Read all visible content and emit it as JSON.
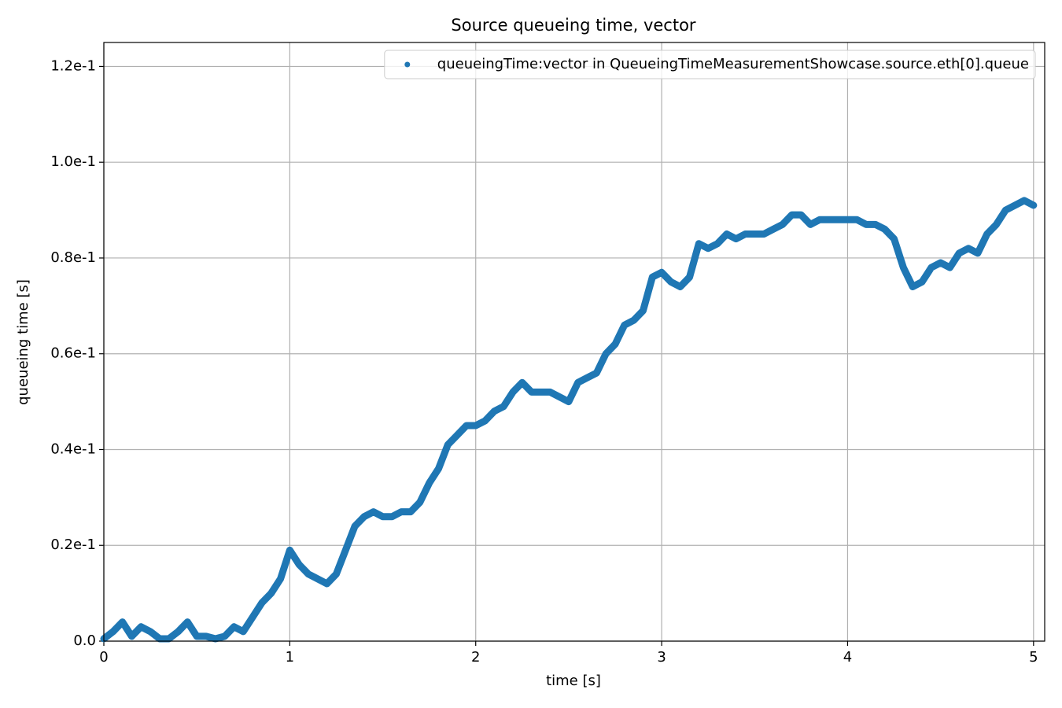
{
  "chart_data": {
    "type": "line",
    "title": "Source queueing time, vector",
    "x_label": "time [s]",
    "y_label": "queueing time [s]",
    "xlim": [
      0,
      5.06
    ],
    "ylim": [
      0,
      0.125
    ],
    "xticks": [
      0,
      1,
      2,
      3,
      4,
      5
    ],
    "yticks": [
      {
        "value": 0,
        "label": "0.0"
      },
      {
        "value": 0.02,
        "label": "0.2e-1"
      },
      {
        "value": 0.04,
        "label": "0.4e-1"
      },
      {
        "value": 0.06,
        "label": "0.6e-1"
      },
      {
        "value": 0.08,
        "label": "0.8e-1"
      },
      {
        "value": 0.1,
        "label": "1.0e-1"
      },
      {
        "value": 0.12,
        "label": "1.2e-1"
      }
    ],
    "grid": true,
    "legend": "upper right",
    "x": [
      0,
      0.05,
      0.1,
      0.15,
      0.2,
      0.25,
      0.3,
      0.35,
      0.4,
      0.45,
      0.5,
      0.55,
      0.6,
      0.65,
      0.7,
      0.75,
      0.8,
      0.85,
      0.9,
      0.95,
      1,
      1.05,
      1.1,
      1.15,
      1.2,
      1.25,
      1.3,
      1.35,
      1.4,
      1.45,
      1.5,
      1.55,
      1.6,
      1.65,
      1.7,
      1.75,
      1.8,
      1.85,
      1.9,
      1.95,
      2,
      2.05,
      2.1,
      2.15,
      2.2,
      2.25,
      2.3,
      2.35,
      2.4,
      2.45,
      2.5,
      2.55,
      2.6,
      2.65,
      2.7,
      2.75,
      2.8,
      2.85,
      2.9,
      2.95,
      3,
      3.05,
      3.1,
      3.15,
      3.2,
      3.25,
      3.3,
      3.35,
      3.4,
      3.45,
      3.5,
      3.55,
      3.6,
      3.65,
      3.7,
      3.75,
      3.8,
      3.85,
      3.9,
      3.95,
      4,
      4.05,
      4.1,
      4.15,
      4.2,
      4.25,
      4.3,
      4.35,
      4.4,
      4.45,
      4.5,
      4.55,
      4.6,
      4.65,
      4.7,
      4.75,
      4.8,
      4.85,
      4.9,
      4.95,
      5
    ],
    "series": [
      {
        "name": "queueingTime:vector in QueueingTimeMeasurementShowcase.source.eth[0].queue",
        "color": "#1f77b4",
        "values": [
          0.0005,
          0.002,
          0.004,
          0.001,
          0.003,
          0.002,
          0.0005,
          0.0005,
          0.002,
          0.004,
          0.001,
          0.001,
          0.0005,
          0.001,
          0.003,
          0.002,
          0.005,
          0.008,
          0.01,
          0.013,
          0.019,
          0.016,
          0.014,
          0.013,
          0.012,
          0.014,
          0.019,
          0.024,
          0.026,
          0.027,
          0.026,
          0.026,
          0.027,
          0.027,
          0.029,
          0.033,
          0.036,
          0.041,
          0.043,
          0.045,
          0.045,
          0.046,
          0.048,
          0.049,
          0.052,
          0.054,
          0.052,
          0.052,
          0.052,
          0.051,
          0.05,
          0.054,
          0.055,
          0.056,
          0.06,
          0.062,
          0.066,
          0.067,
          0.069,
          0.076,
          0.077,
          0.075,
          0.074,
          0.076,
          0.083,
          0.082,
          0.083,
          0.085,
          0.084,
          0.085,
          0.085,
          0.085,
          0.086,
          0.087,
          0.089,
          0.089,
          0.087,
          0.088,
          0.088,
          0.088,
          0.088,
          0.088,
          0.087,
          0.087,
          0.086,
          0.084,
          0.078,
          0.074,
          0.075,
          0.078,
          0.079,
          0.078,
          0.081,
          0.082,
          0.081,
          0.085,
          0.087,
          0.09,
          0.091,
          0.092,
          0.091
        ]
      }
    ]
  }
}
